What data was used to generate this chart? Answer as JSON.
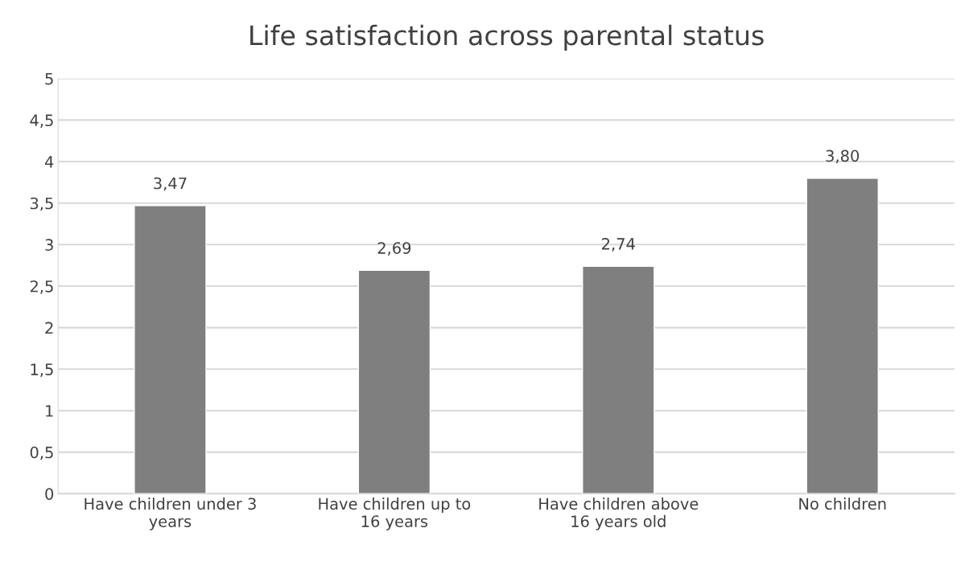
{
  "chart_data": {
    "type": "bar",
    "title": "Life satisfaction across parental status",
    "categories": [
      "Have children under 3 years",
      "Have children up to 16 years",
      "Have children above 16 years old",
      "No children"
    ],
    "values": [
      3.47,
      2.69,
      2.74,
      3.8
    ],
    "value_labels": [
      "3,47",
      "2,69",
      "2,74",
      "3,80"
    ],
    "color": "#7f7f7f",
    "ylim": [
      0,
      5
    ],
    "yticks": [
      0,
      {
        "value": 0.5,
        "label": "0,5"
      },
      1,
      {
        "value": 1.5,
        "label": "1,5"
      },
      2,
      {
        "value": 2.5,
        "label": "2,5"
      },
      3,
      {
        "value": 3.5,
        "label": "3,5"
      },
      4,
      {
        "value": 4.5,
        "label": "4,5"
      },
      5
    ],
    "grid": "y",
    "legend": false
  }
}
